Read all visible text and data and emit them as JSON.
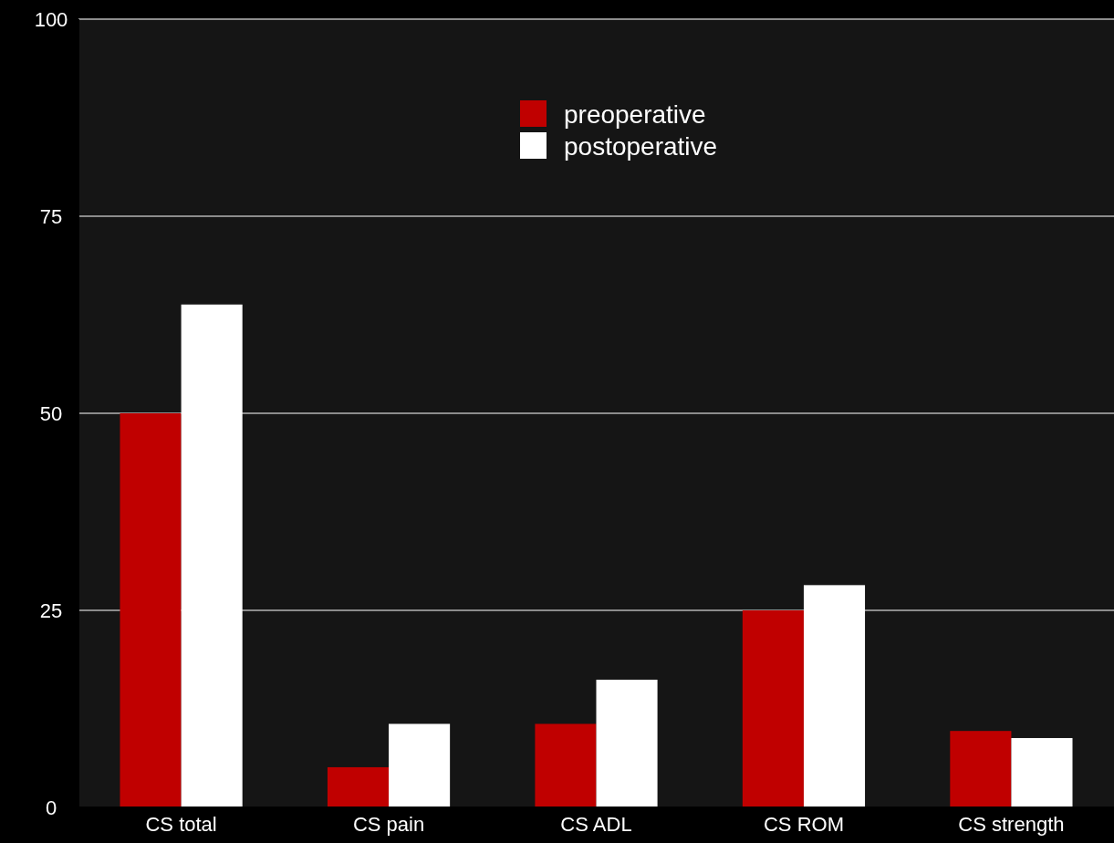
{
  "chart_data": {
    "type": "bar",
    "categories": [
      "CS total",
      "CS pain",
      "CS ADL",
      "CS ROM",
      "CS strength"
    ],
    "series": [
      {
        "name": "preoperative",
        "color": "#c00000",
        "values": [
          50,
          5.1,
          10.6,
          25,
          9.7
        ]
      },
      {
        "name": "postoperative",
        "color": "#ffffff",
        "values": [
          63.8,
          10.6,
          16.2,
          28.2,
          8.8
        ]
      }
    ],
    "ylim": [
      0,
      100
    ],
    "yticks": [
      0,
      25,
      50,
      75,
      100
    ],
    "grid": "y",
    "legend": "top"
  }
}
